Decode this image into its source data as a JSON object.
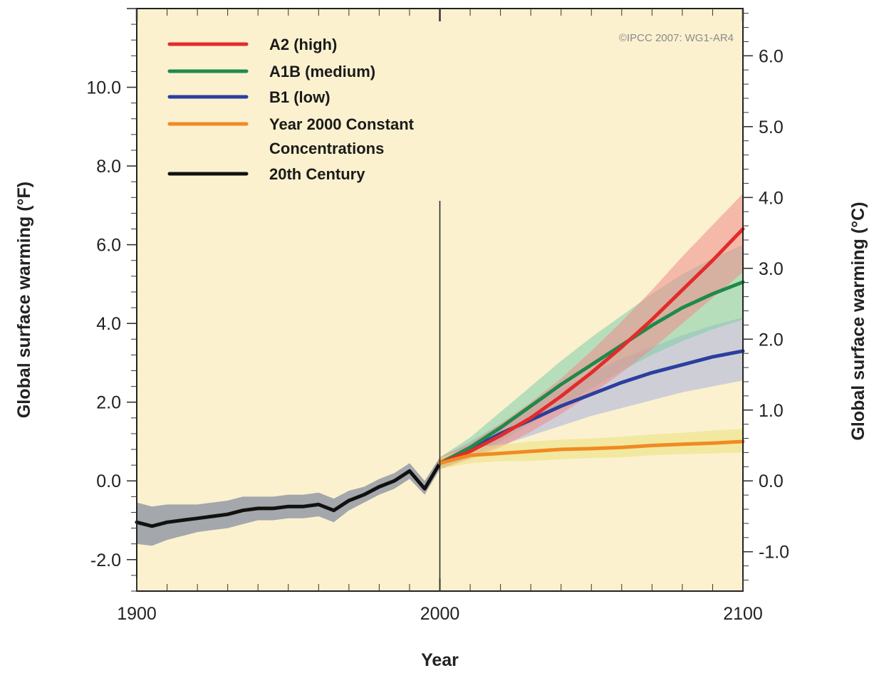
{
  "chart_data": {
    "type": "line",
    "title": "",
    "copyright": "©IPCC  2007: WG1-AR4",
    "xlabel": "Year",
    "ylabel_left": "Global surface warming (°F)",
    "ylabel_right": "Global surface warming (°C)",
    "xlim": [
      1900,
      2100
    ],
    "ylim_left_F": [
      -2.8,
      12.0
    ],
    "ylim_right_C": [
      -1.556,
      6.667
    ],
    "xticks": [
      1900,
      2000,
      2100
    ],
    "xtick_labels": [
      "1900",
      "2000",
      "2100"
    ],
    "yticks_left": [
      -2.0,
      0.0,
      2.0,
      4.0,
      6.0,
      8.0,
      10.0
    ],
    "ytick_labels_left": [
      "-2.0",
      "0.0",
      "2.0",
      "4.0",
      "6.0",
      "8.0",
      "10.0"
    ],
    "yticks_right": [
      -1.0,
      0.0,
      1.0,
      2.0,
      3.0,
      4.0,
      5.0,
      6.0
    ],
    "ytick_labels_right": [
      "-1.0",
      "0.0",
      "1.0",
      "2.0",
      "3.0",
      "4.0",
      "5.0",
      "6.0"
    ],
    "divider_year": 2000,
    "background_color": "#fbf1cf",
    "legend_position": "top-left",
    "series": [
      {
        "name": "A2 (high)",
        "color": "#e32b2b",
        "band_color": "#f08a8a",
        "x": [
          2000,
          2010,
          2020,
          2030,
          2040,
          2050,
          2060,
          2070,
          2080,
          2090,
          2100
        ],
        "y": [
          0.45,
          0.75,
          1.15,
          1.6,
          2.15,
          2.75,
          3.4,
          4.1,
          4.85,
          5.6,
          6.4
        ],
        "y_low": [
          0.3,
          0.55,
          0.85,
          1.25,
          1.7,
          2.2,
          2.75,
          3.35,
          4.0,
          4.65,
          5.3
        ],
        "y_high": [
          0.6,
          0.95,
          1.45,
          2.0,
          2.6,
          3.3,
          4.05,
          4.85,
          5.7,
          6.5,
          7.3
        ]
      },
      {
        "name": "A1B (medium)",
        "color": "#1e8a4c",
        "band_color": "#7fcdaa",
        "x": [
          2000,
          2010,
          2020,
          2030,
          2040,
          2050,
          2060,
          2070,
          2080,
          2090,
          2100
        ],
        "y": [
          0.45,
          0.85,
          1.35,
          1.9,
          2.45,
          2.95,
          3.45,
          3.95,
          4.4,
          4.75,
          5.05
        ],
        "y_low": [
          0.3,
          0.6,
          1.0,
          1.45,
          1.9,
          2.35,
          2.8,
          3.2,
          3.55,
          3.85,
          4.1
        ],
        "y_high": [
          0.6,
          1.1,
          1.75,
          2.4,
          3.05,
          3.65,
          4.2,
          4.75,
          5.25,
          5.65,
          6.0
        ]
      },
      {
        "name": "B1 (low)",
        "color": "#2b3f9e",
        "band_color": "#aab2dd",
        "x": [
          2000,
          2010,
          2020,
          2030,
          2040,
          2050,
          2060,
          2070,
          2080,
          2090,
          2100
        ],
        "y": [
          0.45,
          0.8,
          1.2,
          1.55,
          1.9,
          2.2,
          2.5,
          2.75,
          2.95,
          3.15,
          3.3
        ],
        "y_low": [
          0.3,
          0.6,
          0.9,
          1.15,
          1.4,
          1.65,
          1.85,
          2.05,
          2.25,
          2.4,
          2.55
        ],
        "y_high": [
          0.6,
          1.0,
          1.45,
          1.9,
          2.35,
          2.75,
          3.1,
          3.4,
          3.7,
          3.95,
          4.15
        ]
      },
      {
        "name": "Year 2000 Constant Concentrations",
        "color": "#f08a24",
        "band_color": "#ede07a",
        "x": [
          2000,
          2010,
          2020,
          2030,
          2040,
          2050,
          2060,
          2070,
          2080,
          2090,
          2100
        ],
        "y": [
          0.45,
          0.65,
          0.7,
          0.75,
          0.8,
          0.82,
          0.85,
          0.9,
          0.93,
          0.96,
          1.0
        ],
        "y_low": [
          0.3,
          0.45,
          0.5,
          0.5,
          0.55,
          0.58,
          0.6,
          0.65,
          0.68,
          0.7,
          0.72
        ],
        "y_high": [
          0.6,
          0.85,
          0.92,
          1.0,
          1.05,
          1.08,
          1.12,
          1.18,
          1.22,
          1.28,
          1.32
        ]
      },
      {
        "name": "20th Century",
        "color": "#111111",
        "band_color": "#9a9ea6",
        "x": [
          1900,
          1905,
          1910,
          1915,
          1920,
          1925,
          1930,
          1935,
          1940,
          1945,
          1950,
          1955,
          1960,
          1965,
          1970,
          1975,
          1980,
          1985,
          1990,
          1995,
          2000
        ],
        "y": [
          -1.05,
          -1.15,
          -1.05,
          -1.0,
          -0.95,
          -0.9,
          -0.85,
          -0.75,
          -0.7,
          -0.7,
          -0.65,
          -0.65,
          -0.6,
          -0.75,
          -0.5,
          -0.35,
          -0.15,
          0.0,
          0.25,
          -0.2,
          0.45
        ],
        "y_low": [
          -1.6,
          -1.65,
          -1.5,
          -1.4,
          -1.3,
          -1.25,
          -1.2,
          -1.1,
          -1.0,
          -1.0,
          -0.95,
          -0.95,
          -0.9,
          -1.05,
          -0.75,
          -0.55,
          -0.35,
          -0.2,
          0.05,
          -0.35,
          0.3
        ],
        "y_high": [
          -0.55,
          -0.65,
          -0.6,
          -0.6,
          -0.6,
          -0.55,
          -0.5,
          -0.4,
          -0.4,
          -0.4,
          -0.35,
          -0.35,
          -0.3,
          -0.45,
          -0.25,
          -0.15,
          0.05,
          0.2,
          0.45,
          0.0,
          0.6
        ]
      }
    ],
    "legend": [
      {
        "series_index": 0,
        "lines": [
          "A2 (high)"
        ]
      },
      {
        "series_index": 1,
        "lines": [
          "A1B (medium)"
        ]
      },
      {
        "series_index": 2,
        "lines": [
          "B1 (low)"
        ]
      },
      {
        "series_index": 3,
        "lines": [
          "Year 2000 Constant",
          "Concentrations"
        ]
      },
      {
        "series_index": 4,
        "lines": [
          "20th Century"
        ]
      }
    ]
  }
}
